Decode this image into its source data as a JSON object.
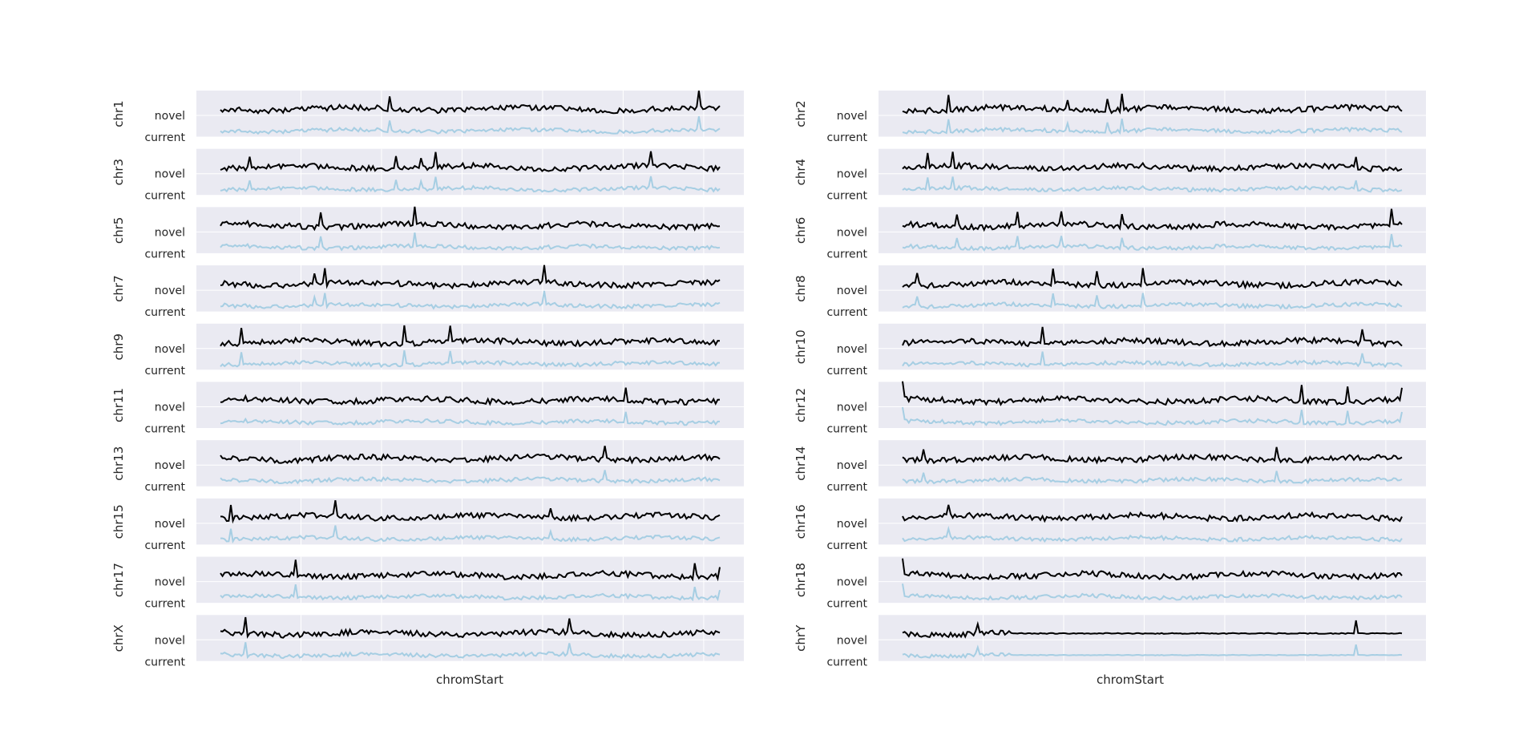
{
  "figure": {
    "xlabel": "chromStart",
    "ytick_labels": [
      "novel",
      "current"
    ],
    "colors": {
      "novel": "#000000",
      "current": "#a6cee3",
      "panel_bg": "#eaeaf2",
      "grid": "#ffffff",
      "text": "#262626"
    }
  },
  "chart_data": {
    "type": "line",
    "grid": true,
    "legend": "none",
    "series_names": [
      "novel",
      "current"
    ],
    "panels": [
      {
        "chrom": "chr1",
        "spikes": [
          0.34,
          0.96
        ]
      },
      {
        "chrom": "chr2",
        "spikes": [
          0.09,
          0.33,
          0.41,
          0.44
        ]
      },
      {
        "chrom": "chr3",
        "spikes": [
          0.06,
          0.35,
          0.4,
          0.43,
          0.86
        ]
      },
      {
        "chrom": "chr4",
        "spikes": [
          0.05,
          0.1,
          0.91
        ]
      },
      {
        "chrom": "chr5",
        "spikes": [
          0.2,
          0.39
        ]
      },
      {
        "chrom": "chr6",
        "spikes": [
          0.11,
          0.23,
          0.32,
          0.44,
          0.98
        ]
      },
      {
        "chrom": "chr7",
        "spikes": [
          0.19,
          0.21,
          0.65
        ]
      },
      {
        "chrom": "chr8",
        "spikes": [
          0.03,
          0.3,
          0.39,
          0.48
        ]
      },
      {
        "chrom": "chr9",
        "spikes": [
          0.04,
          0.37,
          0.46
        ]
      },
      {
        "chrom": "chr10",
        "spikes": [
          0.28,
          0.92
        ]
      },
      {
        "chrom": "chr11",
        "spikes": [
          0.81
        ]
      },
      {
        "chrom": "chr12",
        "spikes": [
          0.0,
          0.8,
          0.89,
          1.0
        ]
      },
      {
        "chrom": "chr13",
        "spikes": [
          0.77
        ]
      },
      {
        "chrom": "chr14",
        "spikes": [
          0.04,
          0.75
        ]
      },
      {
        "chrom": "chr15",
        "spikes": [
          0.02,
          0.23,
          0.66
        ]
      },
      {
        "chrom": "chr16",
        "spikes": [
          0.09
        ]
      },
      {
        "chrom": "chr17",
        "spikes": [
          0.15,
          0.95,
          1.0
        ]
      },
      {
        "chrom": "chr18",
        "spikes": [
          0.0
        ]
      },
      {
        "chrom": "chrX",
        "spikes": [
          0.05,
          0.7
        ]
      },
      {
        "chrom": "chrY",
        "spikes": [
          0.15,
          0.91
        ]
      }
    ]
  }
}
